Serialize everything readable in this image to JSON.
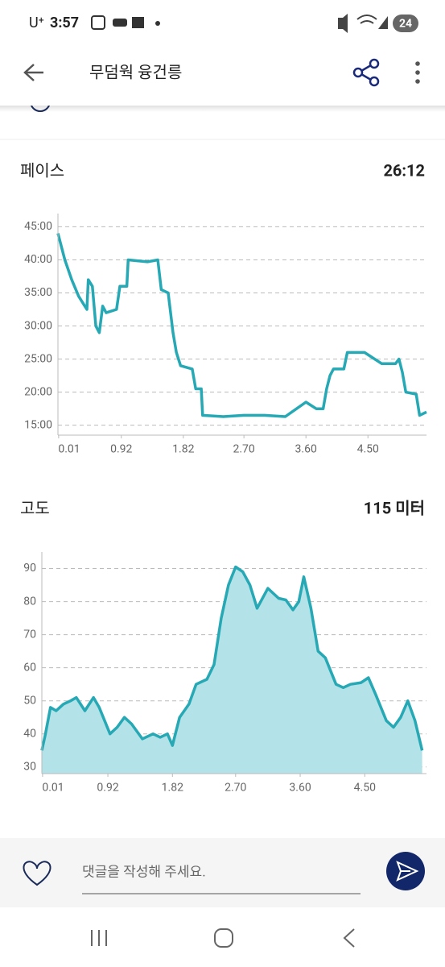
{
  "status_bar": {
    "carrier": "U⁺",
    "time": "3:57",
    "battery": "24"
  },
  "header": {
    "title": "무덤웍 융건릉"
  },
  "comment": {
    "placeholder": "댓글을 작성해 주세요."
  },
  "chart_data": [
    {
      "type": "line",
      "title": "페이스",
      "summary": "26:12",
      "color": "#26a9b5",
      "grid": true,
      "x": [
        0,
        0.1,
        0.2,
        0.3,
        0.42,
        0.44,
        0.5,
        0.55,
        0.6,
        0.65,
        0.7,
        0.85,
        0.9,
        1.0,
        1.02,
        1.3,
        1.45,
        1.5,
        1.6,
        1.67,
        1.72,
        1.78,
        1.95,
        2.0,
        2.08,
        2.1,
        2.4,
        2.7,
        3.0,
        3.3,
        3.6,
        3.75,
        3.85,
        3.9,
        3.95,
        4.0,
        4.15,
        4.2,
        4.45,
        4.7,
        4.9,
        4.95,
        5.0,
        5.05,
        5.2,
        5.25,
        5.35
      ],
      "values": [
        44,
        40,
        37,
        34.5,
        32.5,
        37,
        36,
        30,
        29,
        33,
        32,
        32.5,
        36,
        36,
        40,
        39.7,
        40,
        35.5,
        35,
        29,
        26,
        24,
        23.5,
        20.5,
        20.5,
        16.5,
        16.3,
        16.5,
        16.5,
        16.3,
        18.5,
        17.5,
        17.5,
        20.5,
        22.5,
        23.5,
        23.5,
        26,
        26,
        24.3,
        24.3,
        25,
        23,
        20,
        19.7,
        16.5,
        17
      ],
      "xlim": [
        0,
        5.35
      ],
      "xticks": [
        0.01,
        0.92,
        1.82,
        {
          "value": 2.7,
          "label": "2.70"
        },
        {
          "value": 3.6,
          "label": "3.60"
        },
        {
          "value": 4.5,
          "label": "4.50"
        }
      ],
      "ylim": [
        13.5,
        47
      ],
      "yticks": [
        {
          "value": 15,
          "label": "15:00"
        },
        {
          "value": 20,
          "label": "20:00"
        },
        {
          "value": 25,
          "label": "25:00"
        },
        {
          "value": 30,
          "label": "30:00"
        },
        {
          "value": 35,
          "label": "35:00"
        },
        {
          "value": 40,
          "label": "40:00"
        },
        {
          "value": 45,
          "label": "45:00"
        }
      ]
    },
    {
      "type": "area",
      "title": "고도",
      "summary": "115 미터",
      "color": "#26a9b5",
      "fill": "#b3e3e8",
      "grid": true,
      "x": [
        0,
        0.05,
        0.12,
        0.2,
        0.3,
        0.4,
        0.48,
        0.6,
        0.72,
        0.8,
        0.95,
        1.05,
        1.15,
        1.25,
        1.4,
        1.55,
        1.65,
        1.75,
        1.82,
        1.92,
        2.05,
        2.15,
        2.3,
        2.4,
        2.5,
        2.6,
        2.7,
        2.8,
        2.9,
        3.0,
        3.15,
        3.3,
        3.4,
        3.5,
        3.58,
        3.65,
        3.75,
        3.85,
        3.95,
        4.1,
        4.2,
        4.3,
        4.45,
        4.55,
        4.65,
        4.8,
        4.9,
        5.0,
        5.1,
        5.2,
        5.3
      ],
      "values": [
        35,
        40,
        48,
        47,
        49,
        50,
        51,
        47,
        51,
        48,
        40,
        42,
        45,
        43,
        38.5,
        40,
        39,
        40,
        36.5,
        45,
        49,
        55,
        56.5,
        61,
        75,
        85,
        90.5,
        89,
        85,
        78,
        84,
        81,
        80.5,
        77.5,
        80,
        87.5,
        78,
        65,
        63,
        55,
        54,
        55,
        55.5,
        57,
        52,
        44,
        42,
        45,
        50,
        44,
        35
      ],
      "xlim": [
        0,
        5.36
      ],
      "xticks": [
        0.01,
        0.92,
        1.82,
        {
          "value": 2.7,
          "label": "2.70"
        },
        {
          "value": 3.6,
          "label": "3.60"
        },
        {
          "value": 4.5,
          "label": "4.50"
        }
      ],
      "ylim": [
        28,
        95
      ],
      "yticks": [
        30,
        40,
        50,
        60,
        70,
        80,
        90
      ]
    }
  ]
}
